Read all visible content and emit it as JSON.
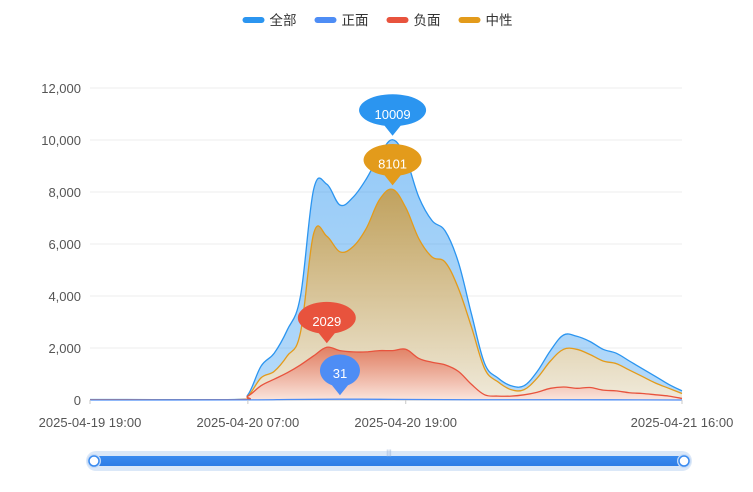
{
  "chart_data": {
    "type": "area",
    "x_start": "2025-04-19 19:00",
    "x_end": "2025-04-21 16:00",
    "x_tick_labels": [
      "2025-04-19 19:00",
      "2025-04-20 07:00",
      "2025-04-20 19:00",
      "2025-04-21 16:00"
    ],
    "ylim": [
      0,
      12000
    ],
    "y_ticks": [
      0,
      2000,
      4000,
      6000,
      8000,
      10000,
      12000
    ],
    "y_tick_labels": [
      "0",
      "2,000",
      "4,000",
      "6,000",
      "8,000",
      "10,000",
      "12,000"
    ],
    "legend_position": "top-center",
    "series": [
      {
        "name": "全部",
        "color": "#2b95f0",
        "points": [
          {
            "t": "2025-04-19 19:00",
            "v": 20
          },
          {
            "t": "2025-04-20 06:00",
            "v": 20
          },
          {
            "t": "2025-04-20 07:00",
            "v": 200
          },
          {
            "t": "2025-04-20 08:00",
            "v": 1300
          },
          {
            "t": "2025-04-20 09:00",
            "v": 1800
          },
          {
            "t": "2025-04-20 10:00",
            "v": 2700
          },
          {
            "t": "2025-04-20 11:00",
            "v": 4000
          },
          {
            "t": "2025-04-20 12:00",
            "v": 8100
          },
          {
            "t": "2025-04-20 13:00",
            "v": 8300
          },
          {
            "t": "2025-04-20 14:00",
            "v": 7500
          },
          {
            "t": "2025-04-20 15:00",
            "v": 7800
          },
          {
            "t": "2025-04-20 16:00",
            "v": 8500
          },
          {
            "t": "2025-04-20 17:00",
            "v": 9400
          },
          {
            "t": "2025-04-20 18:00",
            "v": 10009
          },
          {
            "t": "2025-04-20 19:00",
            "v": 9300
          },
          {
            "t": "2025-04-20 20:00",
            "v": 7800
          },
          {
            "t": "2025-04-20 21:00",
            "v": 6900
          },
          {
            "t": "2025-04-20 22:00",
            "v": 6500
          },
          {
            "t": "2025-04-20 23:00",
            "v": 5300
          },
          {
            "t": "2025-04-21 00:00",
            "v": 3300
          },
          {
            "t": "2025-04-21 01:00",
            "v": 1400
          },
          {
            "t": "2025-04-21 02:00",
            "v": 850
          },
          {
            "t": "2025-04-21 03:00",
            "v": 550
          },
          {
            "t": "2025-04-21 04:00",
            "v": 550
          },
          {
            "t": "2025-04-21 05:00",
            "v": 1100
          },
          {
            "t": "2025-04-21 06:00",
            "v": 1900
          },
          {
            "t": "2025-04-21 07:00",
            "v": 2500
          },
          {
            "t": "2025-04-21 08:00",
            "v": 2450
          },
          {
            "t": "2025-04-21 09:00",
            "v": 2250
          },
          {
            "t": "2025-04-21 10:00",
            "v": 1950
          },
          {
            "t": "2025-04-21 11:00",
            "v": 1800
          },
          {
            "t": "2025-04-21 12:00",
            "v": 1500
          },
          {
            "t": "2025-04-21 13:00",
            "v": 1200
          },
          {
            "t": "2025-04-21 14:00",
            "v": 900
          },
          {
            "t": "2025-04-21 15:00",
            "v": 600
          },
          {
            "t": "2025-04-21 16:00",
            "v": 350
          }
        ]
      },
      {
        "name": "正面",
        "color": "#4e8df5",
        "points": [
          {
            "t": "2025-04-19 19:00",
            "v": 0
          },
          {
            "t": "2025-04-20 07:00",
            "v": 5
          },
          {
            "t": "2025-04-20 10:00",
            "v": 20
          },
          {
            "t": "2025-04-20 14:00",
            "v": 31
          },
          {
            "t": "2025-04-20 18:00",
            "v": 25
          },
          {
            "t": "2025-04-21 00:00",
            "v": 10
          },
          {
            "t": "2025-04-21 07:00",
            "v": 10
          },
          {
            "t": "2025-04-21 16:00",
            "v": 0
          }
        ]
      },
      {
        "name": "负面",
        "color": "#e8533d",
        "points": [
          {
            "t": "2025-04-19 19:00",
            "v": 10
          },
          {
            "t": "2025-04-20 06:00",
            "v": 10
          },
          {
            "t": "2025-04-20 07:00",
            "v": 150
          },
          {
            "t": "2025-04-20 08:00",
            "v": 550
          },
          {
            "t": "2025-04-20 09:00",
            "v": 800
          },
          {
            "t": "2025-04-20 10:00",
            "v": 1050
          },
          {
            "t": "2025-04-20 11:00",
            "v": 1350
          },
          {
            "t": "2025-04-20 12:00",
            "v": 1700
          },
          {
            "t": "2025-04-20 13:00",
            "v": 2029
          },
          {
            "t": "2025-04-20 14:00",
            "v": 1900
          },
          {
            "t": "2025-04-20 15:00",
            "v": 1850
          },
          {
            "t": "2025-04-20 16:00",
            "v": 1850
          },
          {
            "t": "2025-04-20 17:00",
            "v": 1900
          },
          {
            "t": "2025-04-20 18:00",
            "v": 1900
          },
          {
            "t": "2025-04-20 19:00",
            "v": 1950
          },
          {
            "t": "2025-04-20 20:00",
            "v": 1600
          },
          {
            "t": "2025-04-20 21:00",
            "v": 1450
          },
          {
            "t": "2025-04-20 22:00",
            "v": 1350
          },
          {
            "t": "2025-04-20 23:00",
            "v": 1100
          },
          {
            "t": "2025-04-21 00:00",
            "v": 600
          },
          {
            "t": "2025-04-21 01:00",
            "v": 200
          },
          {
            "t": "2025-04-21 02:00",
            "v": 150
          },
          {
            "t": "2025-04-21 03:00",
            "v": 150
          },
          {
            "t": "2025-04-21 04:00",
            "v": 200
          },
          {
            "t": "2025-04-21 05:00",
            "v": 300
          },
          {
            "t": "2025-04-21 06:00",
            "v": 450
          },
          {
            "t": "2025-04-21 07:00",
            "v": 500
          },
          {
            "t": "2025-04-21 08:00",
            "v": 450
          },
          {
            "t": "2025-04-21 09:00",
            "v": 480
          },
          {
            "t": "2025-04-21 10:00",
            "v": 380
          },
          {
            "t": "2025-04-21 11:00",
            "v": 350
          },
          {
            "t": "2025-04-21 12:00",
            "v": 280
          },
          {
            "t": "2025-04-21 13:00",
            "v": 250
          },
          {
            "t": "2025-04-21 14:00",
            "v": 200
          },
          {
            "t": "2025-04-21 15:00",
            "v": 150
          },
          {
            "t": "2025-04-21 16:00",
            "v": 60
          }
        ]
      },
      {
        "name": "中性",
        "color": "#e39b1b",
        "points": [
          {
            "t": "2025-04-19 19:00",
            "v": 15
          },
          {
            "t": "2025-04-20 06:00",
            "v": 15
          },
          {
            "t": "2025-04-20 07:00",
            "v": 150
          },
          {
            "t": "2025-04-20 08:00",
            "v": 850
          },
          {
            "t": "2025-04-20 09:00",
            "v": 1100
          },
          {
            "t": "2025-04-20 10:00",
            "v": 1700
          },
          {
            "t": "2025-04-20 11:00",
            "v": 2600
          },
          {
            "t": "2025-04-20 12:00",
            "v": 6400
          },
          {
            "t": "2025-04-20 13:00",
            "v": 6300
          },
          {
            "t": "2025-04-20 14:00",
            "v": 5700
          },
          {
            "t": "2025-04-20 15:00",
            "v": 5900
          },
          {
            "t": "2025-04-20 16:00",
            "v": 6600
          },
          {
            "t": "2025-04-20 17:00",
            "v": 7700
          },
          {
            "t": "2025-04-20 18:00",
            "v": 8101
          },
          {
            "t": "2025-04-20 19:00",
            "v": 7400
          },
          {
            "t": "2025-04-20 20:00",
            "v": 6200
          },
          {
            "t": "2025-04-20 21:00",
            "v": 5500
          },
          {
            "t": "2025-04-20 22:00",
            "v": 5300
          },
          {
            "t": "2025-04-20 23:00",
            "v": 4300
          },
          {
            "t": "2025-04-21 00:00",
            "v": 2800
          },
          {
            "t": "2025-04-21 01:00",
            "v": 1200
          },
          {
            "t": "2025-04-21 02:00",
            "v": 700
          },
          {
            "t": "2025-04-21 03:00",
            "v": 400
          },
          {
            "t": "2025-04-21 04:00",
            "v": 400
          },
          {
            "t": "2025-04-21 05:00",
            "v": 850
          },
          {
            "t": "2025-04-21 06:00",
            "v": 1500
          },
          {
            "t": "2025-04-21 07:00",
            "v": 1950
          },
          {
            "t": "2025-04-21 08:00",
            "v": 1950
          },
          {
            "t": "2025-04-21 09:00",
            "v": 1750
          },
          {
            "t": "2025-04-21 10:00",
            "v": 1500
          },
          {
            "t": "2025-04-21 11:00",
            "v": 1400
          },
          {
            "t": "2025-04-21 12:00",
            "v": 1150
          },
          {
            "t": "2025-04-21 13:00",
            "v": 900
          },
          {
            "t": "2025-04-21 14:00",
            "v": 650
          },
          {
            "t": "2025-04-21 15:00",
            "v": 450
          },
          {
            "t": "2025-04-21 16:00",
            "v": 250
          }
        ]
      }
    ],
    "markers": [
      {
        "series": "全部",
        "t": "2025-04-20 18:00",
        "value": 10009,
        "label": "10009"
      },
      {
        "series": "中性",
        "t": "2025-04-20 18:00",
        "value": 8101,
        "label": "8101"
      },
      {
        "series": "负面",
        "t": "2025-04-20 13:00",
        "value": 2029,
        "label": "2029"
      },
      {
        "series": "正面",
        "t": "2025-04-20 14:00",
        "value": 31,
        "label": "31"
      }
    ]
  },
  "zoom_slider": {
    "start_percent": 0,
    "end_percent": 100
  }
}
